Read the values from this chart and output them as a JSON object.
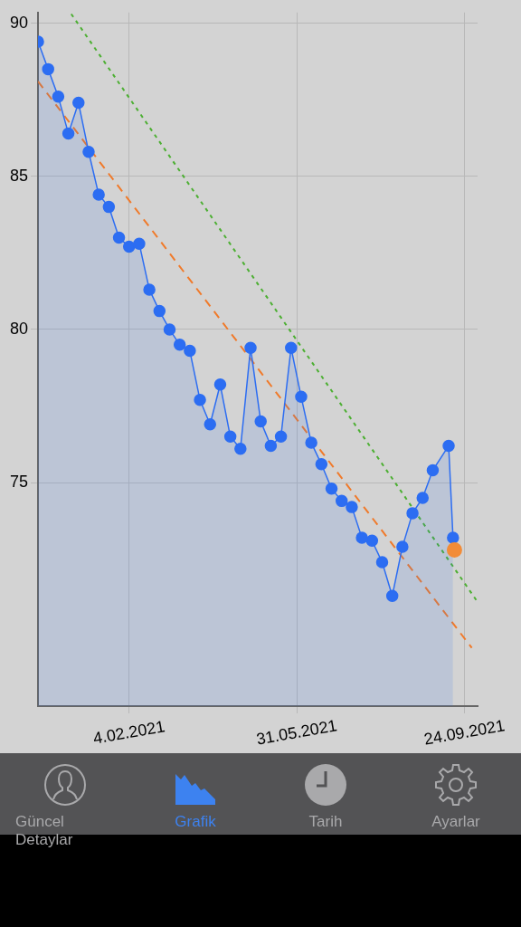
{
  "chart_data": {
    "type": "area",
    "xlim": [
      "2020-12-03",
      "2021-10-03"
    ],
    "ylim": [
      67.7,
      90.35
    ],
    "xticks": [
      {
        "value": "2021-02-04",
        "label": "4.02.2021"
      },
      {
        "value": "2021-05-31",
        "label": "31.05.2021"
      },
      {
        "value": "2021-09-24",
        "label": "24.09.2021"
      }
    ],
    "yticks": [
      75,
      80,
      85,
      90
    ],
    "grid": true,
    "legend": false,
    "marker": "circle",
    "series": [
      {
        "type": "area",
        "color": "#2c6df2",
        "x": [
          "2020-12-03",
          "2020-12-10",
          "2020-12-17",
          "2020-12-24",
          "2020-12-31",
          "2021-01-07",
          "2021-01-14",
          "2021-01-21",
          "2021-01-28",
          "2021-02-04",
          "2021-02-11",
          "2021-02-18",
          "2021-02-25",
          "2021-03-04",
          "2021-03-11",
          "2021-03-18",
          "2021-03-25",
          "2021-04-01",
          "2021-04-08",
          "2021-04-15",
          "2021-04-22",
          "2021-04-29",
          "2021-05-06",
          "2021-05-13",
          "2021-05-20",
          "2021-05-27",
          "2021-06-03",
          "2021-06-10",
          "2021-06-17",
          "2021-06-24",
          "2021-07-01",
          "2021-07-08",
          "2021-07-15",
          "2021-07-22",
          "2021-07-29",
          "2021-08-05",
          "2021-08-12",
          "2021-08-19",
          "2021-08-26",
          "2021-09-02",
          "2021-09-13",
          "2021-09-16"
        ],
        "values": [
          89.4,
          88.5,
          87.6,
          86.4,
          87.4,
          85.8,
          84.4,
          84.0,
          83.0,
          82.7,
          82.8,
          81.3,
          80.6,
          80.0,
          79.5,
          79.3,
          77.7,
          76.9,
          78.2,
          76.5,
          76.1,
          79.4,
          77.0,
          76.2,
          76.5,
          79.4,
          77.8,
          76.3,
          75.6,
          74.8,
          74.4,
          74.2,
          73.2,
          73.1,
          72.4,
          71.3,
          72.9,
          74.0,
          74.5,
          75.4,
          76.2,
          73.2
        ]
      },
      {
        "type": "scatter",
        "color": "#f28c38",
        "x": [
          "2021-09-17"
        ],
        "values": [
          72.8
        ]
      },
      {
        "type": "line",
        "color": "#f07a2a",
        "line_style": "dashed",
        "marker": "none",
        "x": [
          "2020-12-03",
          "2021-09-29"
        ],
        "values": [
          88.1,
          69.6
        ]
      },
      {
        "type": "line",
        "color": "#4caf32",
        "line_style": "dotted",
        "marker": "none",
        "x": [
          "2020-12-26",
          "2021-10-03"
        ],
        "values": [
          90.3,
          71.1
        ]
      }
    ],
    "annotations": [
      "Güncel Detaylar",
      "Grafik",
      "Tarih",
      "Ayarlar"
    ]
  }
}
